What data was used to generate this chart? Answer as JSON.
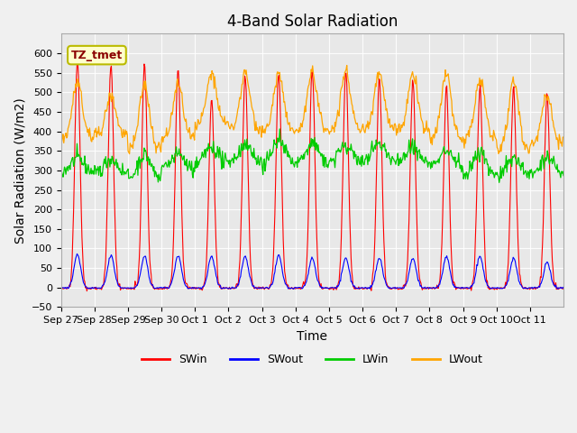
{
  "title": "4-Band Solar Radiation",
  "xlabel": "Time",
  "ylabel": "Solar Radiation (W/m2)",
  "ylim": [
    -50,
    650
  ],
  "yticks": [
    -50,
    0,
    50,
    100,
    150,
    200,
    250,
    300,
    350,
    400,
    450,
    500,
    550,
    600
  ],
  "xtick_labels": [
    "Sep 27",
    "Sep 28",
    "Sep 29",
    "Sep 30",
    "Oct 1",
    "Oct 2",
    "Oct 3",
    "Oct 4",
    "Oct 5",
    "Oct 6",
    "Oct 7",
    "Oct 8",
    "Oct 9",
    "Oct 10",
    "Oct 11"
  ],
  "colors": {
    "SWin": "#ff0000",
    "SWout": "#0000ff",
    "LWin": "#00cc00",
    "LWout": "#ffa500"
  },
  "legend_label": "TZ_tmet",
  "fig_bg_color": "#f0f0f0",
  "plot_bg_color": "#e8e8e8"
}
